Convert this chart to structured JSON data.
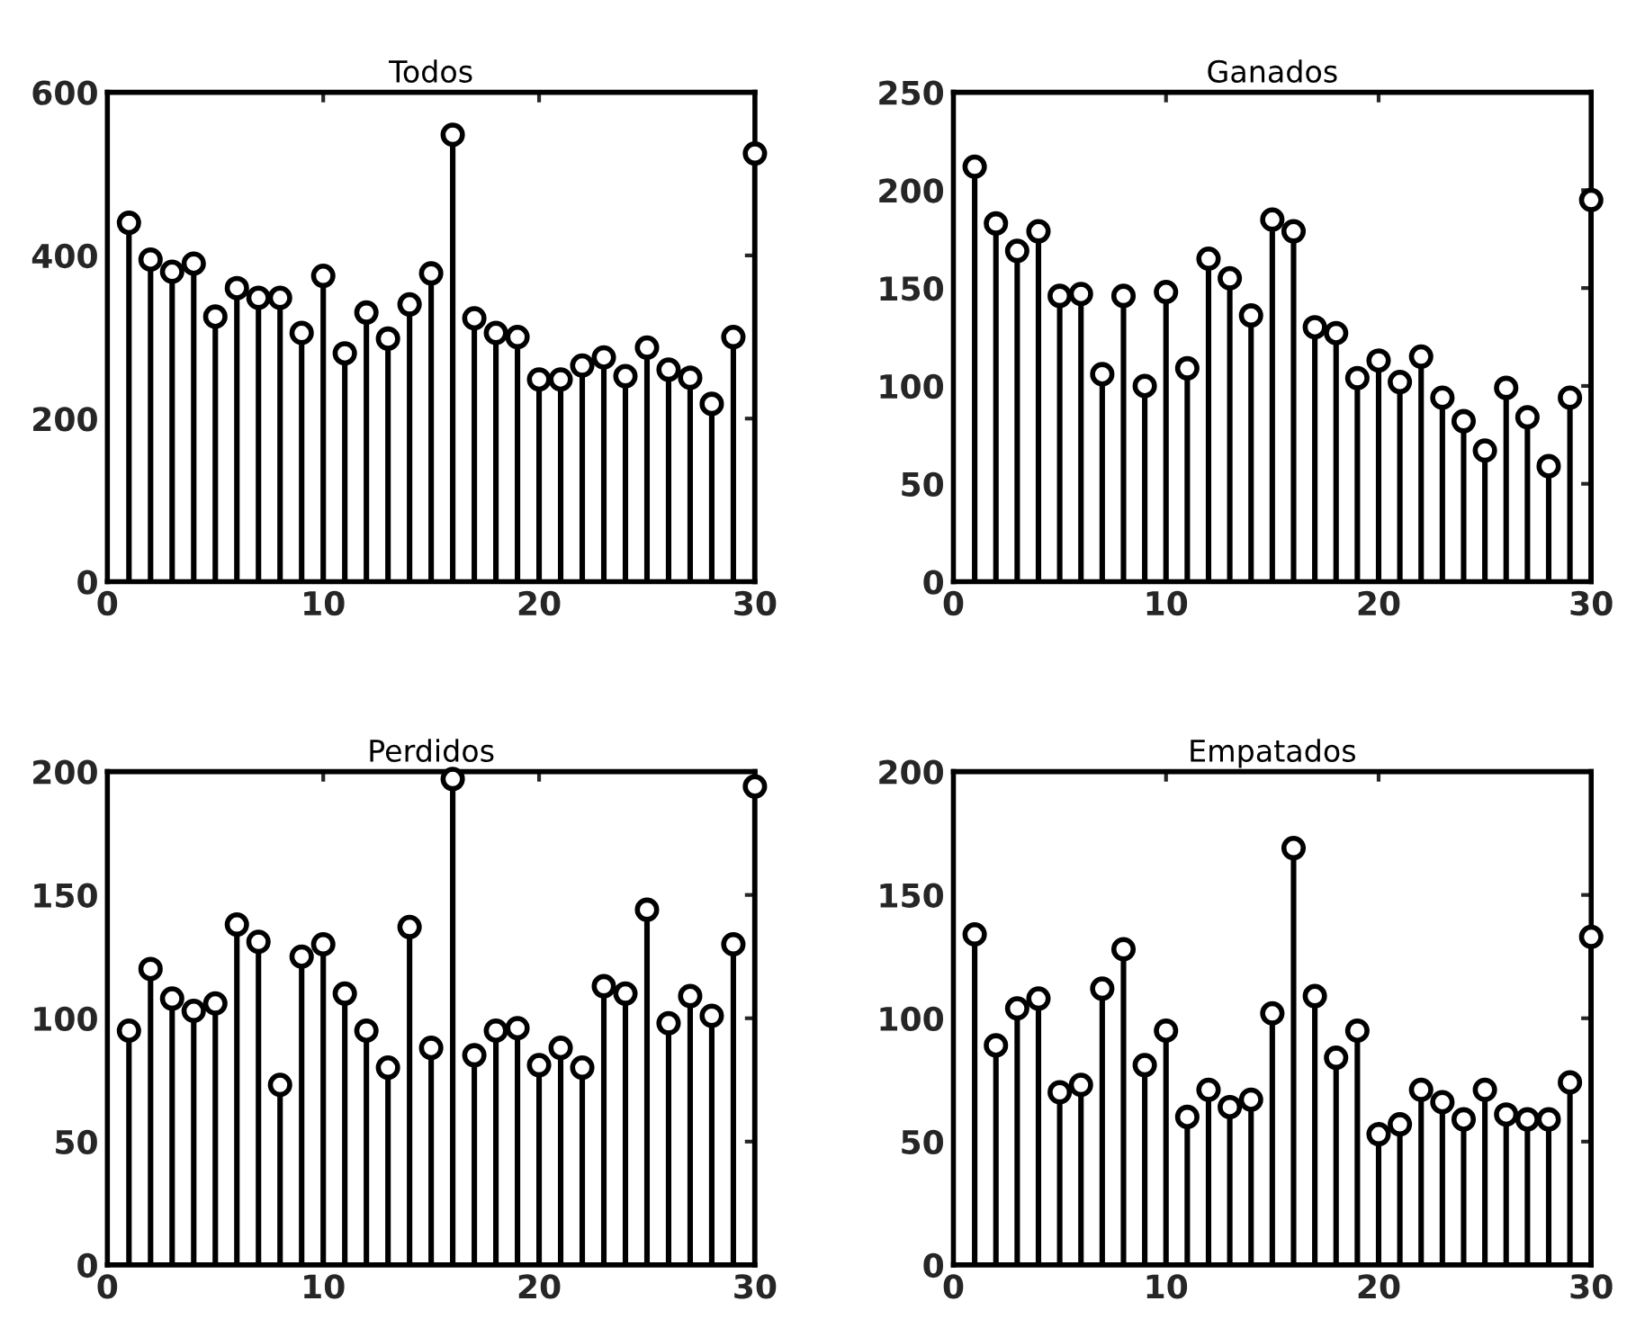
{
  "chart_data": [
    {
      "type": "lollipop",
      "title": "Todos",
      "x": [
        1,
        2,
        3,
        4,
        5,
        6,
        7,
        8,
        9,
        10,
        11,
        12,
        13,
        14,
        15,
        16,
        17,
        18,
        19,
        20,
        21,
        22,
        23,
        24,
        25,
        26,
        27,
        28,
        29,
        30
      ],
      "series": [
        {
          "color": "#000000",
          "values": [
            440,
            395,
            380,
            390,
            325,
            360,
            348,
            348,
            305,
            375,
            280,
            330,
            298,
            340,
            378,
            548,
            323,
            305,
            300,
            248,
            248,
            265,
            275,
            252,
            287,
            260,
            250,
            218,
            300,
            525
          ]
        }
      ],
      "xlim": [
        0,
        30
      ],
      "xticks": [
        0,
        10,
        20,
        30
      ],
      "ylim": [
        0,
        600
      ],
      "yticks": [
        0,
        200,
        400,
        600
      ],
      "marker": "circle"
    },
    {
      "type": "lollipop",
      "title": "Ganados",
      "x": [
        1,
        2,
        3,
        4,
        5,
        6,
        7,
        8,
        9,
        10,
        11,
        12,
        13,
        14,
        15,
        16,
        17,
        18,
        19,
        20,
        21,
        22,
        23,
        24,
        25,
        26,
        27,
        28,
        29,
        30
      ],
      "series": [
        {
          "color": "#000000",
          "values": [
            212,
            183,
            169,
            179,
            146,
            147,
            106,
            146,
            100,
            148,
            109,
            165,
            155,
            136,
            185,
            179,
            130,
            127,
            104,
            113,
            102,
            115,
            94,
            82,
            67,
            99,
            84,
            59,
            94,
            195
          ]
        }
      ],
      "xlim": [
        0,
        30
      ],
      "xticks": [
        0,
        10,
        20,
        30
      ],
      "ylim": [
        0,
        250
      ],
      "yticks": [
        0,
        50,
        100,
        150,
        200,
        250
      ],
      "marker": "circle"
    },
    {
      "type": "lollipop",
      "title": "Perdidos",
      "x": [
        1,
        2,
        3,
        4,
        5,
        6,
        7,
        8,
        9,
        10,
        11,
        12,
        13,
        14,
        15,
        16,
        17,
        18,
        19,
        20,
        21,
        22,
        23,
        24,
        25,
        26,
        27,
        28,
        29,
        30
      ],
      "series": [
        {
          "color": "#000000",
          "values": [
            95,
            120,
            108,
            103,
            106,
            138,
            131,
            73,
            125,
            130,
            110,
            95,
            80,
            137,
            88,
            197,
            85,
            95,
            96,
            81,
            88,
            80,
            113,
            110,
            144,
            98,
            109,
            101,
            130,
            194
          ]
        }
      ],
      "xlim": [
        0,
        30
      ],
      "xticks": [
        0,
        10,
        20,
        30
      ],
      "ylim": [
        0,
        200
      ],
      "yticks": [
        0,
        50,
        100,
        150,
        200
      ],
      "marker": "circle"
    },
    {
      "type": "lollipop",
      "title": "Empatados",
      "x": [
        1,
        2,
        3,
        4,
        5,
        6,
        7,
        8,
        9,
        10,
        11,
        12,
        13,
        14,
        15,
        16,
        17,
        18,
        19,
        20,
        21,
        22,
        23,
        24,
        25,
        26,
        27,
        28,
        29,
        30
      ],
      "series": [
        {
          "color": "#000000",
          "values": [
            134,
            89,
            104,
            108,
            70,
            73,
            112,
            128,
            81,
            95,
            60,
            71,
            64,
            67,
            102,
            169,
            109,
            84,
            95,
            53,
            57,
            71,
            66,
            59,
            71,
            61,
            59,
            59,
            74,
            133
          ]
        }
      ],
      "xlim": [
        0,
        30
      ],
      "xticks": [
        0,
        10,
        20,
        30
      ],
      "ylim": [
        0,
        200
      ],
      "yticks": [
        0,
        50,
        100,
        150,
        200
      ],
      "marker": "circle"
    }
  ]
}
